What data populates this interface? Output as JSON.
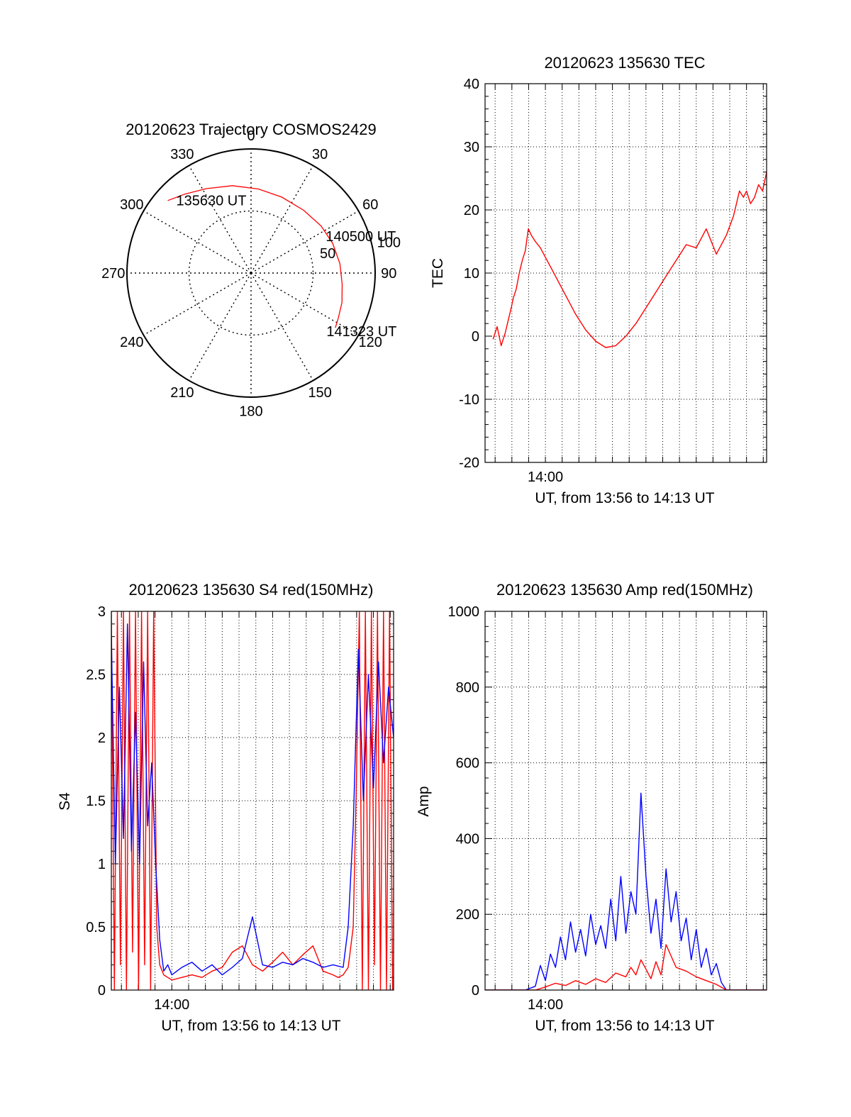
{
  "chart_data": [
    {
      "id": "trajectory",
      "type": "polar",
      "title": "20120623 Trajectory COSMOS2429",
      "azimuth_labels": [
        "0",
        "30",
        "60",
        "90",
        "120",
        "150",
        "180",
        "210",
        "240",
        "270",
        "300",
        "330"
      ],
      "radial_labels": [
        "50",
        "100"
      ],
      "elevation_circles": [
        50,
        100
      ],
      "annotations": [
        {
          "text": "135630 UT",
          "az": 315,
          "r": 82
        },
        {
          "text": "140500 UT",
          "az": 65,
          "r": 69
        },
        {
          "text": "141323 UT",
          "az": 127,
          "r": 79
        }
      ],
      "series": [
        {
          "color": "#ff0000",
          "points": [
            {
              "az": 311,
              "r": 89
            },
            {
              "az": 320,
              "r": 83
            },
            {
              "az": 332,
              "r": 77
            },
            {
              "az": 348,
              "r": 72
            },
            {
              "az": 5,
              "r": 68
            },
            {
              "az": 22,
              "r": 66
            },
            {
              "az": 40,
              "r": 66
            },
            {
              "az": 56,
              "r": 68
            },
            {
              "az": 70,
              "r": 70
            },
            {
              "az": 84,
              "r": 72
            },
            {
              "az": 97,
              "r": 74
            },
            {
              "az": 108,
              "r": 77
            },
            {
              "az": 117,
              "r": 79
            },
            {
              "az": 123,
              "r": 81
            }
          ]
        }
      ]
    },
    {
      "id": "tec",
      "type": "line",
      "title": "20120623 135630 TEC",
      "xlabel": "UT, from 13:56 to 14:13 UT",
      "ylabel": "TEC",
      "xlim": [
        13.94,
        14.22
      ],
      "ylim": [
        -20,
        40
      ],
      "yticks": [
        -20,
        -10,
        0,
        10,
        20,
        30,
        40
      ],
      "xtick_labels": [
        {
          "value": 14.0,
          "label": "14:00"
        }
      ],
      "grid": true,
      "series": [
        {
          "color": "#ff0000",
          "x": [
            13.948,
            13.952,
            13.956,
            13.96,
            13.963,
            13.966,
            13.968,
            13.971,
            13.974,
            13.977,
            13.98,
            13.983,
            13.986,
            13.99,
            13.995,
            14.0,
            14.01,
            14.02,
            14.03,
            14.04,
            14.05,
            14.06,
            14.07,
            14.08,
            14.09,
            14.1,
            14.11,
            14.12,
            14.13,
            14.14,
            14.15,
            14.16,
            14.17,
            14.18,
            14.187,
            14.19,
            14.193,
            14.197,
            14.2,
            14.204,
            14.208,
            14.212,
            14.216,
            14.22
          ],
          "y": [
            -0.5,
            1.5,
            -1.5,
            0.5,
            2.5,
            4.5,
            6,
            7.5,
            10,
            12,
            13.5,
            17,
            16,
            15,
            14,
            12.5,
            9.5,
            6.5,
            3.5,
            1,
            -0.8,
            -1.8,
            -1.5,
            0,
            2,
            4.5,
            7,
            9.5,
            12,
            14.5,
            14,
            17,
            13,
            16,
            19,
            21,
            23,
            22,
            23,
            21,
            22,
            24,
            23,
            26
          ]
        }
      ]
    },
    {
      "id": "s4",
      "type": "line",
      "title": "20120623 135630 S4 red(150MHz)",
      "xlabel": "UT, from 13:56 to 14:13 UT",
      "ylabel": "S4",
      "xlim": [
        13.94,
        14.22
      ],
      "ylim": [
        0,
        3
      ],
      "yticks": [
        0,
        0.5,
        1,
        1.5,
        2,
        2.5,
        3
      ],
      "xtick_labels": [
        {
          "value": 14.0,
          "label": "14:00"
        }
      ],
      "grid": true,
      "series": [
        {
          "color": "#ff0000",
          "x": [
            13.94,
            13.943,
            13.946,
            13.949,
            13.952,
            13.955,
            13.958,
            13.961,
            13.964,
            13.967,
            13.97,
            13.973,
            13.976,
            13.979,
            13.982,
            13.985,
            13.988,
            13.992,
            13.996,
            14.0,
            14.01,
            14.02,
            14.03,
            14.04,
            14.05,
            14.06,
            14.07,
            14.08,
            14.09,
            14.1,
            14.11,
            14.12,
            14.13,
            14.14,
            14.15,
            14.16,
            14.165,
            14.17,
            14.175,
            14.18,
            14.183,
            14.186,
            14.189,
            14.192,
            14.195,
            14.198,
            14.201,
            14.204,
            14.207,
            14.21,
            14.213,
            14.216,
            14.219
          ],
          "y": [
            3,
            0,
            3,
            0.2,
            3,
            0,
            3,
            0.3,
            3,
            0,
            3,
            0.2,
            3,
            0,
            3,
            0.5,
            0.2,
            0.12,
            0.1,
            0.08,
            0.1,
            0.12,
            0.1,
            0.15,
            0.18,
            0.3,
            0.35,
            0.2,
            0.15,
            0.22,
            0.3,
            0.2,
            0.28,
            0.35,
            0.15,
            0.12,
            0.1,
            0.12,
            0.18,
            0.5,
            1.6,
            3,
            0,
            3,
            0,
            3,
            0.2,
            3,
            0,
            3,
            0,
            3,
            0
          ]
        },
        {
          "color": "#0000ff",
          "x": [
            13.94,
            13.944,
            13.948,
            13.952,
            13.956,
            13.96,
            13.964,
            13.968,
            13.972,
            13.976,
            13.98,
            13.984,
            13.988,
            13.992,
            13.996,
            14.0,
            14.01,
            14.02,
            14.03,
            14.04,
            14.05,
            14.06,
            14.07,
            14.08,
            14.09,
            14.1,
            14.11,
            14.12,
            14.13,
            14.14,
            14.15,
            14.16,
            14.17,
            14.175,
            14.18,
            14.185,
            14.19,
            14.195,
            14.2,
            14.205,
            14.21,
            14.215,
            14.22
          ],
          "y": [
            2.8,
            1.0,
            2.4,
            1.2,
            2.9,
            1.1,
            2.2,
            1.0,
            2.6,
            1.3,
            1.8,
            1.0,
            0.4,
            0.15,
            0.2,
            0.12,
            0.18,
            0.22,
            0.15,
            0.2,
            0.12,
            0.18,
            0.25,
            0.58,
            0.2,
            0.18,
            0.22,
            0.2,
            0.25,
            0.22,
            0.18,
            0.2,
            0.18,
            0.5,
            1.3,
            2.7,
            1.5,
            2.5,
            1.6,
            2.6,
            1.8,
            2.4,
            2.0
          ]
        }
      ]
    },
    {
      "id": "amp",
      "type": "line",
      "title": "20120623 135630 Amp red(150MHz)",
      "xlabel": "UT, from 13:56 to 14:13 UT",
      "ylabel": "Amp",
      "xlim": [
        13.94,
        14.22
      ],
      "ylim": [
        0,
        1000
      ],
      "yticks": [
        0,
        200,
        400,
        600,
        800,
        1000
      ],
      "xtick_labels": [
        {
          "value": 14.0,
          "label": "14:00"
        }
      ],
      "grid": true,
      "series": [
        {
          "color": "#0000ff",
          "x": [
            13.94,
            13.98,
            13.99,
            13.995,
            14.0,
            14.005,
            14.01,
            14.015,
            14.02,
            14.025,
            14.03,
            14.035,
            14.04,
            14.045,
            14.05,
            14.055,
            14.06,
            14.065,
            14.07,
            14.075,
            14.08,
            14.085,
            14.09,
            14.095,
            14.1,
            14.105,
            14.11,
            14.115,
            14.12,
            14.125,
            14.13,
            14.135,
            14.14,
            14.145,
            14.15,
            14.155,
            14.16,
            14.165,
            14.17,
            14.175,
            14.18,
            14.19,
            14.2,
            14.22
          ],
          "y": [
            0,
            0,
            10,
            65,
            25,
            95,
            60,
            140,
            80,
            180,
            100,
            160,
            90,
            200,
            120,
            170,
            110,
            240,
            130,
            300,
            150,
            260,
            200,
            520,
            300,
            150,
            240,
            110,
            320,
            180,
            260,
            130,
            190,
            80,
            160,
            60,
            110,
            40,
            70,
            20,
            0,
            0,
            0,
            0
          ]
        },
        {
          "color": "#ff0000",
          "x": [
            13.94,
            13.99,
            14.0,
            14.01,
            14.02,
            14.03,
            14.04,
            14.05,
            14.06,
            14.07,
            14.08,
            14.085,
            14.09,
            14.095,
            14.1,
            14.105,
            14.11,
            14.115,
            14.12,
            14.13,
            14.14,
            14.15,
            14.16,
            14.17,
            14.18,
            14.22
          ],
          "y": [
            0,
            0,
            8,
            18,
            12,
            25,
            15,
            30,
            20,
            45,
            35,
            60,
            40,
            80,
            55,
            30,
            75,
            40,
            120,
            60,
            50,
            35,
            25,
            15,
            0,
            0
          ]
        }
      ]
    }
  ]
}
